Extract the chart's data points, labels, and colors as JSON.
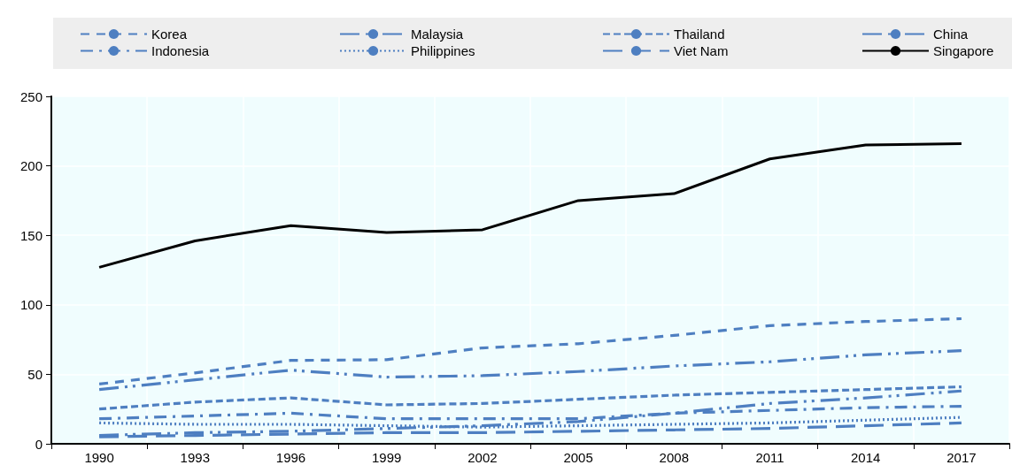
{
  "chart_data": {
    "type": "line",
    "categories": [
      "1990",
      "1993",
      "1996",
      "1999",
      "2002",
      "2005",
      "2008",
      "2011",
      "2014",
      "2017"
    ],
    "ylim": [
      0,
      250
    ],
    "yticks": [
      0,
      50,
      100,
      150,
      200,
      250
    ],
    "grid": true,
    "legend": "top",
    "marker": "none",
    "series": [
      {
        "name": "Korea",
        "color": "#4e7fc1",
        "line_style": "dashed",
        "values": [
          43,
          51,
          60,
          60.5,
          69,
          72,
          78,
          85,
          88,
          90
        ]
      },
      {
        "name": "Malaysia",
        "color": "#4e7fc1",
        "line_style": "dashed",
        "values": [
          39,
          46,
          53,
          48,
          49,
          52,
          56,
          59,
          64,
          67
        ]
      },
      {
        "name": "Thailand",
        "color": "#4e7fc1",
        "line_style": "dashed",
        "values": [
          25,
          30,
          33,
          28,
          29,
          32,
          35,
          37,
          39,
          41
        ]
      },
      {
        "name": "China",
        "color": "#4e7fc1",
        "line_style": "dashed",
        "values": [
          6,
          8,
          9,
          11,
          13,
          16,
          22,
          29,
          33,
          38
        ]
      },
      {
        "name": "Indonesia",
        "color": "#4e7fc1",
        "line_style": "dashed",
        "values": [
          18,
          20,
          22,
          18,
          18,
          18,
          22,
          24,
          26,
          27
        ]
      },
      {
        "name": "Philippines",
        "color": "#4e7fc1",
        "line_style": "dotted",
        "values": [
          15,
          14,
          14,
          13,
          12,
          13,
          14,
          15,
          17,
          19
        ]
      },
      {
        "name": "Viet Nam",
        "color": "#4e7fc1",
        "line_style": "dashed",
        "values": [
          5,
          6,
          7,
          8,
          8,
          9,
          10,
          11,
          13,
          15
        ]
      },
      {
        "name": "Singapore",
        "color": "#000000",
        "line_style": "solid",
        "values": [
          127,
          146,
          157,
          152,
          154,
          175,
          180,
          205,
          215,
          216
        ]
      }
    ]
  }
}
